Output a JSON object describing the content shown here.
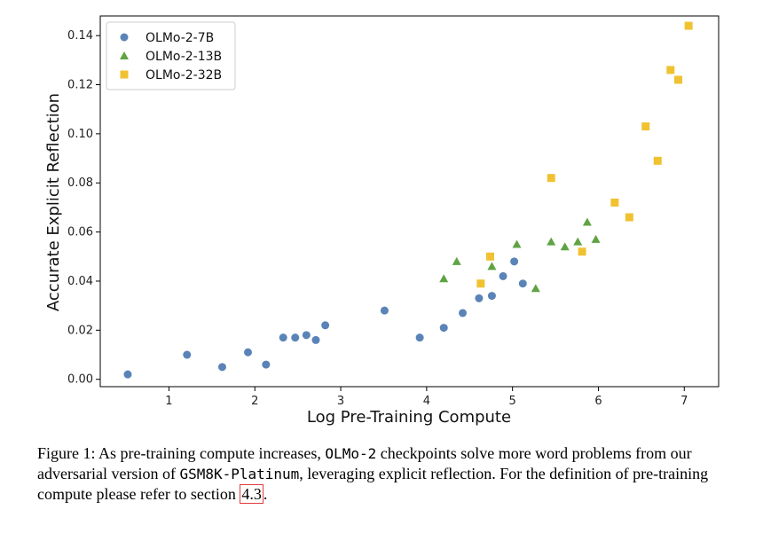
{
  "chart_data": {
    "type": "scatter",
    "xlabel": "Log Pre-Training Compute",
    "ylabel": "Accurate Explicit Reflection",
    "xlim": [
      0.2,
      7.4
    ],
    "ylim": [
      -0.003,
      0.148
    ],
    "xticks": [
      1,
      2,
      3,
      4,
      5,
      6,
      7
    ],
    "yticks": [
      0.0,
      0.02,
      0.04,
      0.06,
      0.08,
      0.1,
      0.12,
      0.14
    ],
    "ytick_labels": [
      "0.00",
      "0.02",
      "0.04",
      "0.06",
      "0.08",
      "0.10",
      "0.12",
      "0.14"
    ],
    "grid": false,
    "legend_position": "top-left",
    "series": [
      {
        "name": "OLMo-2-7B",
        "marker": "circle",
        "color": "#5a83b8",
        "points": [
          [
            0.52,
            0.002
          ],
          [
            1.21,
            0.01
          ],
          [
            1.62,
            0.005
          ],
          [
            1.92,
            0.011
          ],
          [
            2.13,
            0.006
          ],
          [
            2.33,
            0.017
          ],
          [
            2.47,
            0.017
          ],
          [
            2.6,
            0.018
          ],
          [
            2.71,
            0.016
          ],
          [
            2.82,
            0.022
          ],
          [
            3.51,
            0.028
          ],
          [
            3.92,
            0.017
          ],
          [
            4.2,
            0.021
          ],
          [
            4.42,
            0.027
          ],
          [
            4.61,
            0.033
          ],
          [
            4.76,
            0.034
          ],
          [
            4.89,
            0.042
          ],
          [
            5.02,
            0.048
          ],
          [
            5.12,
            0.039
          ]
        ]
      },
      {
        "name": "OLMo-2-13B",
        "marker": "triangle",
        "color": "#5fa344",
        "points": [
          [
            4.2,
            0.041
          ],
          [
            4.35,
            0.048
          ],
          [
            4.76,
            0.046
          ],
          [
            5.05,
            0.055
          ],
          [
            5.27,
            0.037
          ],
          [
            5.45,
            0.056
          ],
          [
            5.61,
            0.054
          ],
          [
            5.76,
            0.056
          ],
          [
            5.87,
            0.064
          ],
          [
            5.97,
            0.057
          ]
        ]
      },
      {
        "name": "OLMo-2-32B",
        "marker": "square",
        "color": "#f0c232",
        "points": [
          [
            4.63,
            0.039
          ],
          [
            4.74,
            0.05
          ],
          [
            5.45,
            0.082
          ],
          [
            5.81,
            0.052
          ],
          [
            6.19,
            0.072
          ],
          [
            6.36,
            0.066
          ],
          [
            6.55,
            0.103
          ],
          [
            6.69,
            0.089
          ],
          [
            6.84,
            0.126
          ],
          [
            6.93,
            0.122
          ],
          [
            7.05,
            0.144
          ]
        ]
      }
    ]
  },
  "caption": {
    "prefix": "Figure 1: As pre-training compute increases, ",
    "model_code": "OLMo-2",
    "middle": " checkpoints solve more word problems from our adversarial version of ",
    "dataset_code": "GSM8K-Platinum",
    "after_dataset": ", leveraging explicit reflection. For the definition of pre-training compute please refer to section ",
    "section_ref": "4.3",
    "suffix": "."
  }
}
